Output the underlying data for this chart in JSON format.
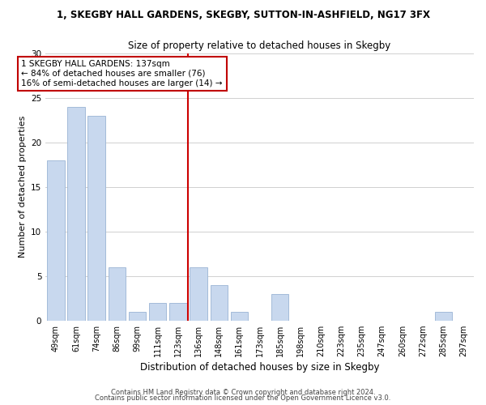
{
  "title": "1, SKEGBY HALL GARDENS, SKEGBY, SUTTON-IN-ASHFIELD, NG17 3FX",
  "subtitle": "Size of property relative to detached houses in Skegby",
  "xlabel": "Distribution of detached houses by size in Skegby",
  "ylabel": "Number of detached properties",
  "bar_labels": [
    "49sqm",
    "61sqm",
    "74sqm",
    "86sqm",
    "99sqm",
    "111sqm",
    "123sqm",
    "136sqm",
    "148sqm",
    "161sqm",
    "173sqm",
    "185sqm",
    "198sqm",
    "210sqm",
    "223sqm",
    "235sqm",
    "247sqm",
    "260sqm",
    "272sqm",
    "285sqm",
    "297sqm"
  ],
  "bar_values": [
    18,
    24,
    23,
    6,
    1,
    2,
    2,
    6,
    4,
    1,
    0,
    3,
    0,
    0,
    0,
    0,
    0,
    0,
    0,
    1,
    0
  ],
  "bar_color": "#c8d8ee",
  "bar_edge_color": "#9ab4d4",
  "vline_color": "#cc0000",
  "ylim": [
    0,
    30
  ],
  "yticks": [
    0,
    5,
    10,
    15,
    20,
    25,
    30
  ],
  "annotation_line1": "1 SKEGBY HALL GARDENS: 137sqm",
  "annotation_line2": "← 84% of detached houses are smaller (76)",
  "annotation_line3": "16% of semi-detached houses are larger (14) →",
  "footer1": "Contains HM Land Registry data © Crown copyright and database right 2024.",
  "footer2": "Contains public sector information licensed under the Open Government Licence v3.0.",
  "bg_color": "#ffffff",
  "grid_color": "#d0d0d0",
  "vline_bar_index": 7
}
